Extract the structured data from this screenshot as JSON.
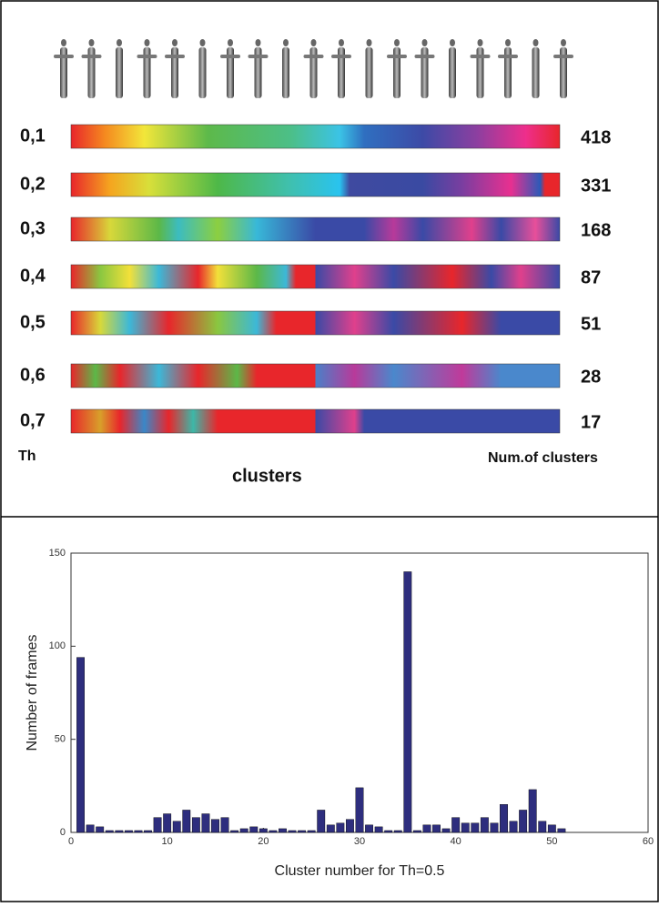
{
  "panel_top": {
    "rows": [
      {
        "th": "0,1",
        "clusters": "418"
      },
      {
        "th": "0,2",
        "clusters": "331"
      },
      {
        "th": "0,3",
        "clusters": "168"
      },
      {
        "th": "0,4",
        "clusters": "87"
      },
      {
        "th": "0,5",
        "clusters": "51"
      },
      {
        "th": "0,6",
        "clusters": "28"
      },
      {
        "th": "0,7",
        "clusters": "17"
      }
    ],
    "th_label": "Th",
    "num_label": "Num.of clusters",
    "x_label": "clusters"
  },
  "chart_data": {
    "type": "bar",
    "xlabel": "Cluster number for Th=0.5",
    "ylabel": "Number of frames",
    "x": [
      1,
      2,
      3,
      4,
      5,
      6,
      7,
      8,
      9,
      10,
      11,
      12,
      13,
      14,
      15,
      16,
      17,
      18,
      19,
      20,
      21,
      22,
      23,
      24,
      25,
      26,
      27,
      28,
      29,
      30,
      31,
      32,
      33,
      34,
      35,
      36,
      37,
      38,
      39,
      40,
      41,
      42,
      43,
      44,
      45,
      46,
      47,
      48,
      49,
      50,
      51
    ],
    "values": [
      94,
      4,
      3,
      1,
      1,
      1,
      1,
      1,
      8,
      10,
      6,
      12,
      8,
      10,
      7,
      8,
      1,
      2,
      3,
      2,
      1,
      2,
      1,
      1,
      1,
      12,
      4,
      5,
      7,
      24,
      4,
      3,
      1,
      1,
      140,
      1,
      4,
      4,
      2,
      8,
      5,
      5,
      8,
      5,
      15,
      6,
      12,
      23,
      6,
      4,
      2
    ],
    "color": "#2e2e7e",
    "xlim": [
      0,
      60
    ],
    "xticks": [
      0,
      10,
      20,
      30,
      40,
      50,
      60
    ],
    "ylim": [
      0,
      150
    ],
    "yticks": [
      0,
      50,
      100,
      150
    ]
  }
}
